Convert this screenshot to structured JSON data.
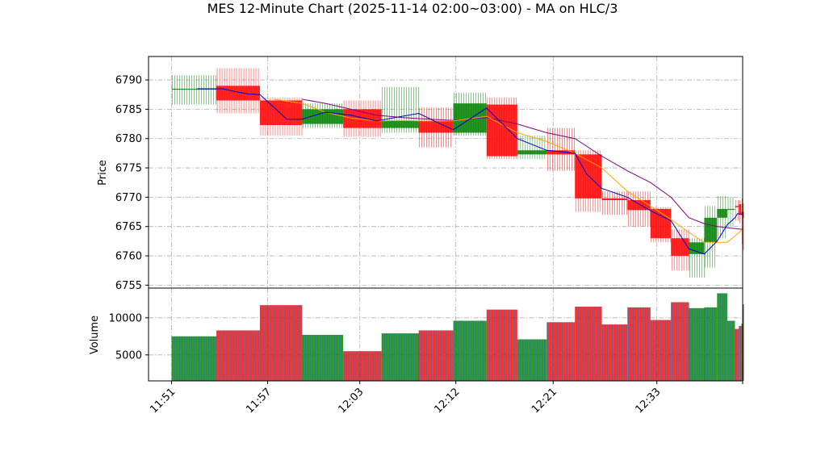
{
  "chart_data": {
    "type": "candlestick",
    "title": "MES 12-Minute Chart (2025-11-14 02:00~03:00) - MA on HLC/3",
    "price_panel": {
      "ylabel": "Price",
      "ylim": [
        6754.5,
        6794
      ],
      "yticks": [
        6755,
        6760,
        6765,
        6770,
        6775,
        6780,
        6785,
        6790
      ]
    },
    "volume_panel": {
      "ylabel": "Volume",
      "ylim": [
        1500,
        14000
      ],
      "yticks": [
        5000,
        10000
      ]
    },
    "xlim": [
      -0.9,
      22.3
    ],
    "x_tick_labels": [
      "11:51",
      "11:57",
      "12:03",
      "12:12",
      "12:21",
      "12:33"
    ],
    "x_tick_positions": [
      0,
      3.75,
      7.35,
      11.1,
      14.9,
      18.95
    ],
    "x_last_tick": 22.3,
    "colors": {
      "up": "#008000",
      "down": "#ff0000",
      "ma_fast": "#0000cc",
      "ma_mid": "#ffa500",
      "ma_slow": "#800080",
      "volume_edge": "#1f77b4"
    },
    "candles": [
      {
        "x0": 0.0,
        "x1": 1.75,
        "open": 6788.5,
        "close": 6788.5,
        "high": 6790.8,
        "low": 6785.8,
        "volume": 7500
      },
      {
        "x0": 1.75,
        "x1": 3.45,
        "open": 6789.0,
        "close": 6786.5,
        "high": 6792.0,
        "low": 6784.3,
        "volume": 8300
      },
      {
        "x0": 3.45,
        "x1": 5.1,
        "open": 6786.5,
        "close": 6782.3,
        "high": 6787.0,
        "low": 6780.5,
        "volume": 11700
      },
      {
        "x0": 5.1,
        "x1": 6.7,
        "open": 6782.5,
        "close": 6785.0,
        "high": 6786.0,
        "low": 6781.8,
        "volume": 7700
      },
      {
        "x0": 6.7,
        "x1": 8.2,
        "open": 6785.0,
        "close": 6781.8,
        "high": 6786.5,
        "low": 6780.3,
        "volume": 5500
      },
      {
        "x0": 8.2,
        "x1": 9.65,
        "open": 6781.8,
        "close": 6783.0,
        "high": 6788.8,
        "low": 6781.0,
        "volume": 7900
      },
      {
        "x0": 9.65,
        "x1": 11.0,
        "open": 6783.0,
        "close": 6781.0,
        "high": 6785.3,
        "low": 6778.5,
        "volume": 8300
      },
      {
        "x0": 11.0,
        "x1": 12.3,
        "open": 6781.0,
        "close": 6786.0,
        "high": 6787.8,
        "low": 6780.5,
        "volume": 9600
      },
      {
        "x0": 12.3,
        "x1": 13.5,
        "open": 6785.8,
        "close": 6777.0,
        "high": 6787.0,
        "low": 6776.5,
        "volume": 11100
      },
      {
        "x0": 13.5,
        "x1": 14.65,
        "open": 6777.3,
        "close": 6778.0,
        "high": 6780.5,
        "low": 6776.5,
        "volume": 7100
      },
      {
        "x0": 14.65,
        "x1": 15.75,
        "open": 6778.0,
        "close": 6777.3,
        "high": 6781.8,
        "low": 6774.5,
        "volume": 9400
      },
      {
        "x0": 15.75,
        "x1": 16.8,
        "open": 6777.3,
        "close": 6769.8,
        "high": 6778.0,
        "low": 6767.5,
        "volume": 11500
      },
      {
        "x0": 16.8,
        "x1": 17.8,
        "open": 6769.8,
        "close": 6769.5,
        "high": 6771.0,
        "low": 6767.0,
        "volume": 9100
      },
      {
        "x0": 17.8,
        "x1": 18.7,
        "open": 6769.5,
        "close": 6767.8,
        "high": 6771.0,
        "low": 6765.0,
        "volume": 11400
      },
      {
        "x0": 18.7,
        "x1": 19.5,
        "open": 6768.0,
        "close": 6763.0,
        "high": 6768.3,
        "low": 6762.3,
        "volume": 9700
      },
      {
        "x0": 19.5,
        "x1": 20.2,
        "open": 6763.0,
        "close": 6760.0,
        "high": 6764.5,
        "low": 6757.5,
        "volume": 12100
      },
      {
        "x0": 20.2,
        "x1": 20.8,
        "open": 6760.3,
        "close": 6762.3,
        "high": 6763.0,
        "low": 6756.3,
        "volume": 11300
      },
      {
        "x0": 20.8,
        "x1": 21.3,
        "open": 6762.3,
        "close": 6766.5,
        "high": 6768.5,
        "low": 6758.0,
        "volume": 11400
      },
      {
        "x0": 21.3,
        "x1": 21.7,
        "open": 6766.5,
        "close": 6768.0,
        "high": 6770.2,
        "low": 6763.0,
        "volume": 13300
      },
      {
        "x0": 21.7,
        "x1": 22.0,
        "open": 6768.0,
        "close": 6768.0,
        "high": 6770.0,
        "low": 6765.0,
        "volume": 9600
      },
      {
        "x0": 22.0,
        "x1": 22.15,
        "open": 6768.5,
        "close": 6768.3,
        "high": 6769.5,
        "low": 6766.0,
        "volume": 8500
      },
      {
        "x0": 22.15,
        "x1": 22.25,
        "open": 6768.8,
        "close": 6767.0,
        "high": 6769.5,
        "low": 6765.5,
        "volume": 8900
      },
      {
        "x0": 22.25,
        "x1": 22.3,
        "open": 6767.0,
        "close": 6767.5,
        "high": 6769.8,
        "low": 6762.0,
        "volume": 9200
      },
      {
        "x0": 22.3,
        "x1": 22.35,
        "open": 6767.5,
        "close": 6766.5,
        "high": 6769.0,
        "low": 6761.0,
        "volume": 11800
      }
    ],
    "ma_fast": [
      [
        1.0,
        6788.5
      ],
      [
        2.0,
        6788.5
      ],
      [
        2.5,
        6788.0
      ],
      [
        3.0,
        6787.6
      ],
      [
        3.45,
        6787.5
      ],
      [
        4.5,
        6783.3
      ],
      [
        5.1,
        6783.3
      ],
      [
        6.0,
        6784.5
      ],
      [
        7.0,
        6784.0
      ],
      [
        8.0,
        6783.0
      ],
      [
        9.0,
        6783.8
      ],
      [
        9.65,
        6784.3
      ],
      [
        10.5,
        6782.5
      ],
      [
        11.0,
        6781.5
      ],
      [
        12.3,
        6785.2
      ],
      [
        13.5,
        6780.0
      ],
      [
        14.65,
        6778.0
      ],
      [
        15.75,
        6777.5
      ],
      [
        16.2,
        6774.0
      ],
      [
        16.8,
        6771.5
      ],
      [
        17.8,
        6770.0
      ],
      [
        18.7,
        6767.7
      ],
      [
        19.5,
        6766.0
      ],
      [
        20.2,
        6761.2
      ],
      [
        20.8,
        6760.3
      ],
      [
        21.3,
        6762.5
      ],
      [
        21.7,
        6765.3
      ],
      [
        22.0,
        6766.5
      ],
      [
        22.1,
        6767.2
      ],
      [
        22.3,
        6767.0
      ]
    ],
    "ma_mid": [
      [
        4.0,
        6786.7
      ],
      [
        5.1,
        6786.0
      ],
      [
        6.0,
        6784.5
      ],
      [
        7.0,
        6783.5
      ],
      [
        8.0,
        6783.0
      ],
      [
        9.0,
        6783.1
      ],
      [
        9.65,
        6783.0
      ],
      [
        11.0,
        6783.0
      ],
      [
        12.3,
        6783.8
      ],
      [
        13.5,
        6781.0
      ],
      [
        14.65,
        6779.5
      ],
      [
        15.75,
        6777.5
      ],
      [
        16.8,
        6775.0
      ],
      [
        17.8,
        6771.0
      ],
      [
        18.7,
        6768.5
      ],
      [
        19.5,
        6766.2
      ],
      [
        20.2,
        6764.0
      ],
      [
        20.8,
        6762.3
      ],
      [
        21.3,
        6762.3
      ],
      [
        21.7,
        6762.3
      ],
      [
        22.3,
        6764.5
      ]
    ],
    "ma_slow": [
      [
        5.1,
        6786.7
      ],
      [
        6.0,
        6786.0
      ],
      [
        7.0,
        6785.0
      ],
      [
        8.0,
        6784.0
      ],
      [
        9.0,
        6783.6
      ],
      [
        9.65,
        6783.4
      ],
      [
        11.0,
        6783.1
      ],
      [
        12.3,
        6783.6
      ],
      [
        13.5,
        6782.5
      ],
      [
        14.65,
        6781.0
      ],
      [
        15.75,
        6780.0
      ],
      [
        16.8,
        6777.0
      ],
      [
        17.8,
        6774.5
      ],
      [
        18.7,
        6772.5
      ],
      [
        19.5,
        6770.0
      ],
      [
        20.2,
        6766.5
      ],
      [
        20.8,
        6765.5
      ],
      [
        21.3,
        6765.0
      ],
      [
        21.7,
        6764.8
      ],
      [
        22.3,
        6764.5
      ]
    ]
  }
}
